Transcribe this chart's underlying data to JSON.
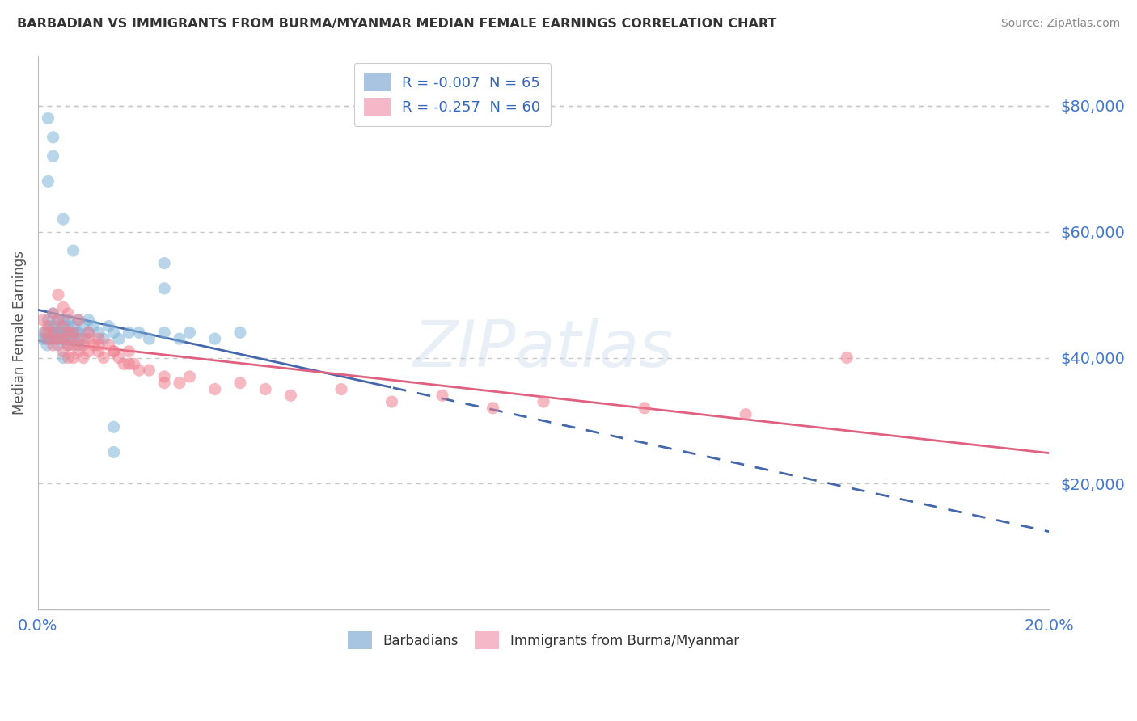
{
  "title": "BARBADIAN VS IMMIGRANTS FROM BURMA/MYANMAR MEDIAN FEMALE EARNINGS CORRELATION CHART",
  "source": "Source: ZipAtlas.com",
  "ylabel": "Median Female Earnings",
  "y_tick_labels": [
    "$20,000",
    "$40,000",
    "$60,000",
    "$80,000"
  ],
  "y_tick_values": [
    20000,
    40000,
    60000,
    80000
  ],
  "xlim": [
    0.0,
    0.2
  ],
  "ylim": [
    0,
    88000
  ],
  "series1_label": "Barbadians",
  "series2_label": "Immigrants from Burma/Myanmar",
  "series1_color": "#7fb3d9",
  "series2_color": "#f08090",
  "series1_line_color": "#4466aa",
  "series2_line_color": "#e06080",
  "background_color": "#ffffff",
  "grid_color": "#c8c8c8",
  "title_color": "#333333",
  "axis_label_color": "#4477cc",
  "R1": -0.007,
  "N1": 65,
  "R2": -0.257,
  "N2": 60,
  "barbadians_x": [
    0.0008,
    0.0012,
    0.0015,
    0.0018,
    0.002,
    0.002,
    0.0022,
    0.0025,
    0.003,
    0.003,
    0.003,
    0.0032,
    0.0035,
    0.0038,
    0.004,
    0.004,
    0.004,
    0.0042,
    0.0045,
    0.005,
    0.005,
    0.005,
    0.005,
    0.005,
    0.0055,
    0.006,
    0.006,
    0.006,
    0.006,
    0.0065,
    0.007,
    0.007,
    0.007,
    0.0075,
    0.008,
    0.008,
    0.008,
    0.009,
    0.009,
    0.01,
    0.01,
    0.011,
    0.012,
    0.013,
    0.014,
    0.015,
    0.016,
    0.018,
    0.02,
    0.022,
    0.025,
    0.028,
    0.03,
    0.035,
    0.04,
    0.002,
    0.003,
    0.005,
    0.007,
    0.002,
    0.003,
    0.025,
    0.025,
    0.015,
    0.015
  ],
  "barbadians_y": [
    43000,
    44000,
    43000,
    42000,
    44000,
    46000,
    43000,
    45000,
    44000,
    47000,
    43000,
    45000,
    43000,
    44000,
    42000,
    44000,
    46000,
    43000,
    44000,
    40000,
    43000,
    44000,
    45000,
    46000,
    43000,
    42000,
    44000,
    45000,
    46000,
    43000,
    44000,
    45000,
    43000,
    44000,
    42000,
    44000,
    46000,
    43000,
    45000,
    44000,
    46000,
    45000,
    44000,
    43000,
    45000,
    44000,
    43000,
    44000,
    44000,
    43000,
    44000,
    43000,
    44000,
    43000,
    44000,
    68000,
    72000,
    62000,
    57000,
    78000,
    75000,
    51000,
    55000,
    29000,
    25000
  ],
  "burma_x": [
    0.001,
    0.0015,
    0.002,
    0.002,
    0.003,
    0.003,
    0.003,
    0.004,
    0.004,
    0.005,
    0.005,
    0.005,
    0.006,
    0.006,
    0.006,
    0.007,
    0.007,
    0.007,
    0.008,
    0.008,
    0.009,
    0.009,
    0.01,
    0.01,
    0.011,
    0.012,
    0.012,
    0.013,
    0.014,
    0.015,
    0.016,
    0.017,
    0.018,
    0.019,
    0.02,
    0.022,
    0.025,
    0.028,
    0.03,
    0.035,
    0.04,
    0.045,
    0.05,
    0.06,
    0.07,
    0.08,
    0.09,
    0.1,
    0.12,
    0.14,
    0.004,
    0.005,
    0.006,
    0.008,
    0.01,
    0.012,
    0.015,
    0.018,
    0.025,
    0.16
  ],
  "burma_y": [
    46000,
    44000,
    45000,
    43000,
    47000,
    44000,
    42000,
    46000,
    43000,
    45000,
    43000,
    41000,
    44000,
    42000,
    40000,
    44000,
    42000,
    40000,
    43000,
    41000,
    42000,
    40000,
    43000,
    41000,
    42000,
    41000,
    43000,
    40000,
    42000,
    41000,
    40000,
    39000,
    41000,
    39000,
    38000,
    38000,
    37000,
    36000,
    37000,
    35000,
    36000,
    35000,
    34000,
    35000,
    33000,
    34000,
    32000,
    33000,
    32000,
    31000,
    50000,
    48000,
    47000,
    46000,
    44000,
    42000,
    41000,
    39000,
    36000,
    40000
  ]
}
